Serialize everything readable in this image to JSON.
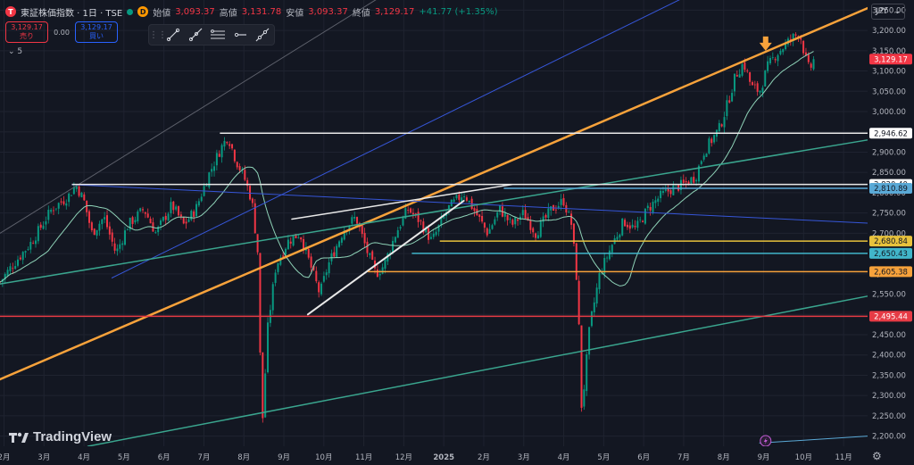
{
  "header": {
    "symbol": "東証株価指数 · 1日 · TSE",
    "logo_letter": "T",
    "badge_letter": "D",
    "open_label": "始値",
    "open": "3,093.37",
    "high_label": "高値",
    "high": "3,131.78",
    "low_label": "安値",
    "low": "3,093.37",
    "close_label": "終値",
    "close": "3,129.17",
    "change": "+41.77 (+1.35%)"
  },
  "trade": {
    "sell_price": "3,129.17",
    "sell_label": "売り",
    "spread": "0.00",
    "buy_price": "3,129.17",
    "buy_label": "買い"
  },
  "indicators_toggle": "5",
  "drawing_toolbar": [
    "trend-line-tool",
    "ray-tool",
    "parallel-channel-tool",
    "horizontal-ray-tool",
    "extended-line-tool"
  ],
  "currency": "JPY",
  "brand": "TradingView",
  "colors": {
    "background": "#131722",
    "up": "#089981",
    "down": "#f23645",
    "ma": "#8fd3b8",
    "orange": "#f7a23b",
    "blue": "#3656d8",
    "teal": "#3aa58e",
    "white": "#e8e8e8",
    "red_line": "#e63b45",
    "yellow": "#e8c23c",
    "cyan": "#41b5c9",
    "gray": "#5d606b",
    "light_blue": "#5aa9d6"
  },
  "chart_data": {
    "type": "candlestick",
    "x_tick_labels": [
      "2月",
      "3月",
      "4月",
      "5月",
      "6月",
      "7月",
      "8月",
      "9月",
      "10月",
      "11月",
      "12月",
      "2025",
      "2月",
      "3月",
      "4月",
      "5月",
      "6月",
      "7月",
      "8月",
      "9月",
      "10月",
      "11月"
    ],
    "y_ticks": [
      2200,
      2250,
      2300,
      2350,
      2400,
      2450,
      2500,
      2550,
      2600,
      2650,
      2700,
      2750,
      2800,
      2850,
      2900,
      2950,
      3000,
      3050,
      3100,
      3150,
      3200,
      3250
    ],
    "y_tick_labels": [
      "2,200.00",
      "2,250.00",
      "2,300.00",
      "2,350.00",
      "2,400.00",
      "2,450.00",
      "2,500.00",
      "2,550.00",
      "2,600.00",
      "2,650.00",
      "2,700.00",
      "2,750.00",
      "2,800.00",
      "2,850.00",
      "2,900.00",
      "2,950.00",
      "3,000.00",
      "3,050.00",
      "3,100.00",
      "3,150.00",
      "3,200.00",
      "3,250.00"
    ],
    "ylim": [
      2175,
      3275
    ],
    "x_range_months": [
      0,
      21.7
    ],
    "price_path": [
      [
        0,
        2580
      ],
      [
        0.3,
        2620
      ],
      [
        0.8,
        2680
      ],
      [
        1.3,
        2760
      ],
      [
        1.7,
        2790
      ],
      [
        1.9,
        2820
      ],
      [
        2.1,
        2780
      ],
      [
        2.3,
        2700
      ],
      [
        2.6,
        2740
      ],
      [
        2.9,
        2650
      ],
      [
        3.2,
        2720
      ],
      [
        3.6,
        2760
      ],
      [
        3.9,
        2700
      ],
      [
        4.3,
        2770
      ],
      [
        4.6,
        2720
      ],
      [
        4.9,
        2760
      ],
      [
        5.2,
        2840
      ],
      [
        5.5,
        2905
      ],
      [
        5.7,
        2940
      ],
      [
        5.9,
        2880
      ],
      [
        6.1,
        2840
      ],
      [
        6.3,
        2780
      ],
      [
        6.45,
        2650
      ],
      [
        6.55,
        2210
      ],
      [
        6.7,
        2470
      ],
      [
        6.9,
        2620
      ],
      [
        7.2,
        2680
      ],
      [
        7.5,
        2700
      ],
      [
        7.8,
        2610
      ],
      [
        8.0,
        2550
      ],
      [
        8.2,
        2620
      ],
      [
        8.6,
        2710
      ],
      [
        8.9,
        2740
      ],
      [
        9.2,
        2650
      ],
      [
        9.4,
        2600
      ],
      [
        9.6,
        2620
      ],
      [
        9.9,
        2700
      ],
      [
        10.2,
        2760
      ],
      [
        10.5,
        2730
      ],
      [
        10.8,
        2680
      ],
      [
        11.2,
        2760
      ],
      [
        11.6,
        2800
      ],
      [
        11.9,
        2750
      ],
      [
        12.2,
        2700
      ],
      [
        12.5,
        2760
      ],
      [
        12.8,
        2720
      ],
      [
        13.1,
        2750
      ],
      [
        13.4,
        2700
      ],
      [
        13.8,
        2760
      ],
      [
        14.1,
        2780
      ],
      [
        14.3,
        2720
      ],
      [
        14.45,
        2560
      ],
      [
        14.55,
        2260
      ],
      [
        14.75,
        2470
      ],
      [
        15.0,
        2600
      ],
      [
        15.3,
        2670
      ],
      [
        15.6,
        2730
      ],
      [
        15.9,
        2710
      ],
      [
        16.2,
        2760
      ],
      [
        16.5,
        2790
      ],
      [
        16.8,
        2810
      ],
      [
        17.1,
        2820
      ],
      [
        17.4,
        2840
      ],
      [
        17.6,
        2900
      ],
      [
        17.8,
        2930
      ],
      [
        18.0,
        2960
      ],
      [
        18.2,
        3020
      ],
      [
        18.4,
        3090
      ],
      [
        18.6,
        3120
      ],
      [
        18.8,
        3060
      ],
      [
        19.0,
        3050
      ],
      [
        19.2,
        3110
      ],
      [
        19.4,
        3140
      ],
      [
        19.6,
        3160
      ],
      [
        19.8,
        3180
      ],
      [
        20.0,
        3195
      ],
      [
        20.15,
        3130
      ],
      [
        20.25,
        3100
      ],
      [
        20.35,
        3129
      ]
    ],
    "price_lines": [
      {
        "value": 2946.62,
        "label": "2,946.62",
        "color": "white",
        "x_start": 5.5
      },
      {
        "value": 2820.4,
        "label": "2,820.40",
        "color": "white",
        "x_start": 1.8
      },
      {
        "value": 2810.89,
        "label": "2,810.89",
        "color": "light_blue",
        "x_start": 12.6
      },
      {
        "value": 2680.84,
        "label": "2,680.84",
        "color": "yellow",
        "x_start": 11.0
      },
      {
        "value": 2650.43,
        "label": "2,650.43",
        "color": "cyan",
        "x_start": 10.3
      },
      {
        "value": 2605.38,
        "label": "2,605.38",
        "color": "orange",
        "x_start": 9.2
      },
      {
        "value": 2495.44,
        "label": "2,495.44",
        "color": "red_line",
        "x_start": 0
      }
    ],
    "last_price": {
      "value": 3129.17,
      "label": "3,129.17"
    },
    "trend_lines": [
      {
        "color": "orange",
        "width": 2.5,
        "points": [
          [
            0,
            2340
          ],
          [
            21.7,
            3255
          ]
        ]
      },
      {
        "color": "blue",
        "width": 1,
        "points": [
          [
            2.8,
            2590
          ],
          [
            17.5,
            3300
          ]
        ]
      },
      {
        "color": "blue",
        "width": 1,
        "points": [
          [
            1.8,
            2820
          ],
          [
            21.7,
            2725
          ]
        ]
      },
      {
        "color": "teal",
        "width": 1.5,
        "points": [
          [
            0,
            2575
          ],
          [
            21.7,
            2930
          ]
        ]
      },
      {
        "color": "teal",
        "width": 1.5,
        "points": [
          [
            2.2,
            2175
          ],
          [
            21.7,
            2545
          ]
        ]
      },
      {
        "color": "gray",
        "width": 1,
        "points": [
          [
            0,
            2700
          ],
          [
            9.8,
            3300
          ]
        ]
      },
      {
        "color": "light_blue",
        "width": 1,
        "points": [
          [
            19.0,
            2183
          ],
          [
            21.7,
            2200
          ]
        ]
      },
      {
        "color": "white",
        "width": 2,
        "points": [
          [
            7.7,
            2500
          ],
          [
            11.6,
            2780
          ]
        ]
      },
      {
        "color": "white",
        "width": 1.5,
        "points": [
          [
            7.3,
            2735
          ],
          [
            12.8,
            2820
          ]
        ]
      }
    ],
    "annotation": {
      "type": "arrow-down",
      "x": 19.15,
      "y": 3150,
      "color": "orange"
    }
  }
}
